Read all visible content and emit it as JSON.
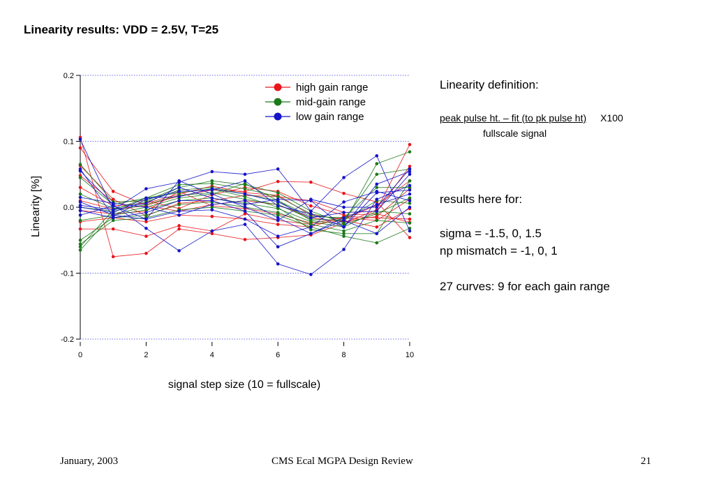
{
  "slide": {
    "title": "Linearity results: VDD = 2.5V, T=25",
    "definition_heading": "Linearity definition:",
    "formula_numerator": "peak pulse ht. – fit (to pk pulse ht)",
    "formula_multiplier": "X100",
    "formula_denominator": "fullscale signal",
    "results_heading": "results here for:",
    "sigma_line": "sigma = -1.5, 0, 1.5",
    "np_line": "np mismatch = -1, 0, 1",
    "curves_line": "27 curves: 9 for each gain range"
  },
  "footer": {
    "date": "January, 2003",
    "center": "CMS Ecal MGPA Design Review",
    "page": "21"
  },
  "chart_data": {
    "type": "line",
    "xlabel": "signal step size (10 = fullscale)",
    "ylabel": "Linearity [%]",
    "xlim": [
      0,
      10
    ],
    "ylim": [
      -0.2,
      0.2
    ],
    "x_ticks": [
      "0",
      "2",
      "4",
      "6",
      "8",
      "10"
    ],
    "y_ticks": [
      "0.2",
      "0.1",
      "0.0",
      "-0.1",
      "-0.2"
    ],
    "grid_y_dotted": [
      0.2,
      0.1,
      -0.1,
      -0.2
    ],
    "legend_position": "top-right",
    "x": [
      0,
      1,
      2,
      3,
      4,
      5,
      6,
      7,
      8,
      9,
      10
    ],
    "groups": [
      {
        "name": "high gain range",
        "color": "#e8161b",
        "series": [
          [
            0.106,
            -0.075,
            -0.07,
            -0.033,
            -0.04,
            -0.049,
            -0.046,
            -0.042,
            -0.024,
            -0.004,
            0.095
          ],
          [
            0.09,
            0.024,
            0.003,
            0.017,
            0.026,
            0.024,
            0.039,
            0.038,
            0.021,
            0.008,
            -0.046
          ],
          [
            0.063,
            0.012,
            -0.013,
            0.006,
            0.01,
            0.018,
            0.016,
            0.01,
            -0.008,
            -0.006,
            0.062
          ],
          [
            0.048,
            0.008,
            0.01,
            -0.002,
            0.019,
            0.03,
            0.024,
            0.002,
            -0.012,
            -0.01,
            -0.023
          ],
          [
            0.03,
            0.002,
            0.006,
            0.02,
            0.032,
            0.022,
            0.018,
            -0.012,
            -0.018,
            0.003,
            0.04
          ],
          [
            0.01,
            -0.003,
            0.002,
            -0.006,
            0.004,
            0.01,
            0.004,
            -0.016,
            -0.022,
            -0.014,
            0.028
          ],
          [
            -0.005,
            -0.01,
            -0.006,
            0.024,
            0.002,
            -0.002,
            -0.01,
            -0.024,
            -0.016,
            -0.02,
            0.012
          ],
          [
            -0.022,
            -0.016,
            -0.022,
            -0.012,
            -0.014,
            -0.018,
            -0.026,
            -0.03,
            -0.014,
            -0.016,
            -0.018
          ],
          [
            -0.033,
            -0.033,
            -0.044,
            -0.028,
            -0.036,
            -0.01,
            -0.02,
            -0.026,
            -0.02,
            -0.03,
            -0.002
          ]
        ]
      },
      {
        "name": "mid-gain range",
        "color": "#1a7a1a",
        "series": [
          [
            0.065,
            0.008,
            0.01,
            0.03,
            0.04,
            0.034,
            0.022,
            -0.006,
            -0.024,
            0.066,
            0.084
          ],
          [
            0.045,
            0.004,
            0.014,
            0.034,
            0.036,
            0.028,
            0.016,
            -0.01,
            -0.02,
            0.05,
            0.058
          ],
          [
            0.02,
            -0.002,
            0.008,
            0.026,
            0.03,
            0.02,
            0.01,
            -0.014,
            -0.016,
            0.03,
            0.03
          ],
          [
            0.0,
            -0.006,
            0.004,
            0.018,
            0.022,
            0.012,
            0.004,
            -0.018,
            -0.02,
            0.01,
            0.006
          ],
          [
            -0.02,
            -0.012,
            -0.004,
            0.01,
            0.014,
            0.006,
            -0.002,
            -0.022,
            -0.03,
            -0.006,
            -0.01
          ],
          [
            -0.05,
            -0.016,
            -0.012,
            0.004,
            0.008,
            0.0,
            -0.008,
            -0.026,
            -0.036,
            -0.02,
            -0.024
          ],
          [
            -0.056,
            -0.02,
            -0.016,
            -0.004,
            0.0,
            -0.006,
            -0.012,
            -0.03,
            -0.044,
            -0.054,
            -0.032
          ],
          [
            -0.06,
            -0.004,
            0.014,
            0.022,
            0.028,
            0.016,
            0.0,
            -0.034,
            -0.04,
            -0.04,
            0.04
          ],
          [
            -0.065,
            -0.01,
            0.0,
            0.014,
            0.02,
            0.036,
            0.01,
            -0.02,
            -0.026,
            -0.01,
            0.014
          ]
        ]
      },
      {
        "name": "low gain range",
        "color": "#1414c8",
        "series": [
          [
            0.103,
            -0.004,
            0.028,
            0.038,
            0.054,
            0.05,
            0.058,
            -0.006,
            0.045,
            0.078,
            -0.036
          ],
          [
            0.058,
            -0.014,
            0.012,
            0.024,
            0.026,
            0.04,
            0.002,
            -0.01,
            -0.03,
            0.035,
            0.054
          ],
          [
            0.055,
            0.004,
            -0.032,
            -0.066,
            -0.036,
            -0.026,
            -0.086,
            -0.102,
            -0.064,
            0.012,
            0.033
          ],
          [
            0.015,
            0.006,
            0.0,
            -0.012,
            0.004,
            0.01,
            -0.016,
            -0.04,
            -0.016,
            0.004,
            0.02
          ],
          [
            0.008,
            -0.012,
            -0.018,
            -0.006,
            -0.004,
            -0.018,
            -0.044,
            -0.03,
            0.008,
            0.024,
            0.01
          ],
          [
            0.003,
            -0.004,
            0.006,
            0.03,
            0.014,
            0.004,
            0.012,
            0.01,
            -0.03,
            0.022,
            0.026
          ],
          [
            -0.005,
            -0.016,
            -0.008,
            0.01,
            0.01,
            -0.006,
            -0.06,
            -0.04,
            -0.02,
            -0.04,
            0.0
          ],
          [
            -0.012,
            0.002,
            -0.018,
            0.04,
            0.02,
            0.0,
            -0.02,
            0.012,
            0.0,
            0.0,
            0.058
          ],
          [
            0.0,
            -0.008,
            0.014,
            0.016,
            0.028,
            0.02,
            0.008,
            -0.016,
            -0.008,
            -0.006,
            0.05
          ]
        ]
      }
    ]
  }
}
